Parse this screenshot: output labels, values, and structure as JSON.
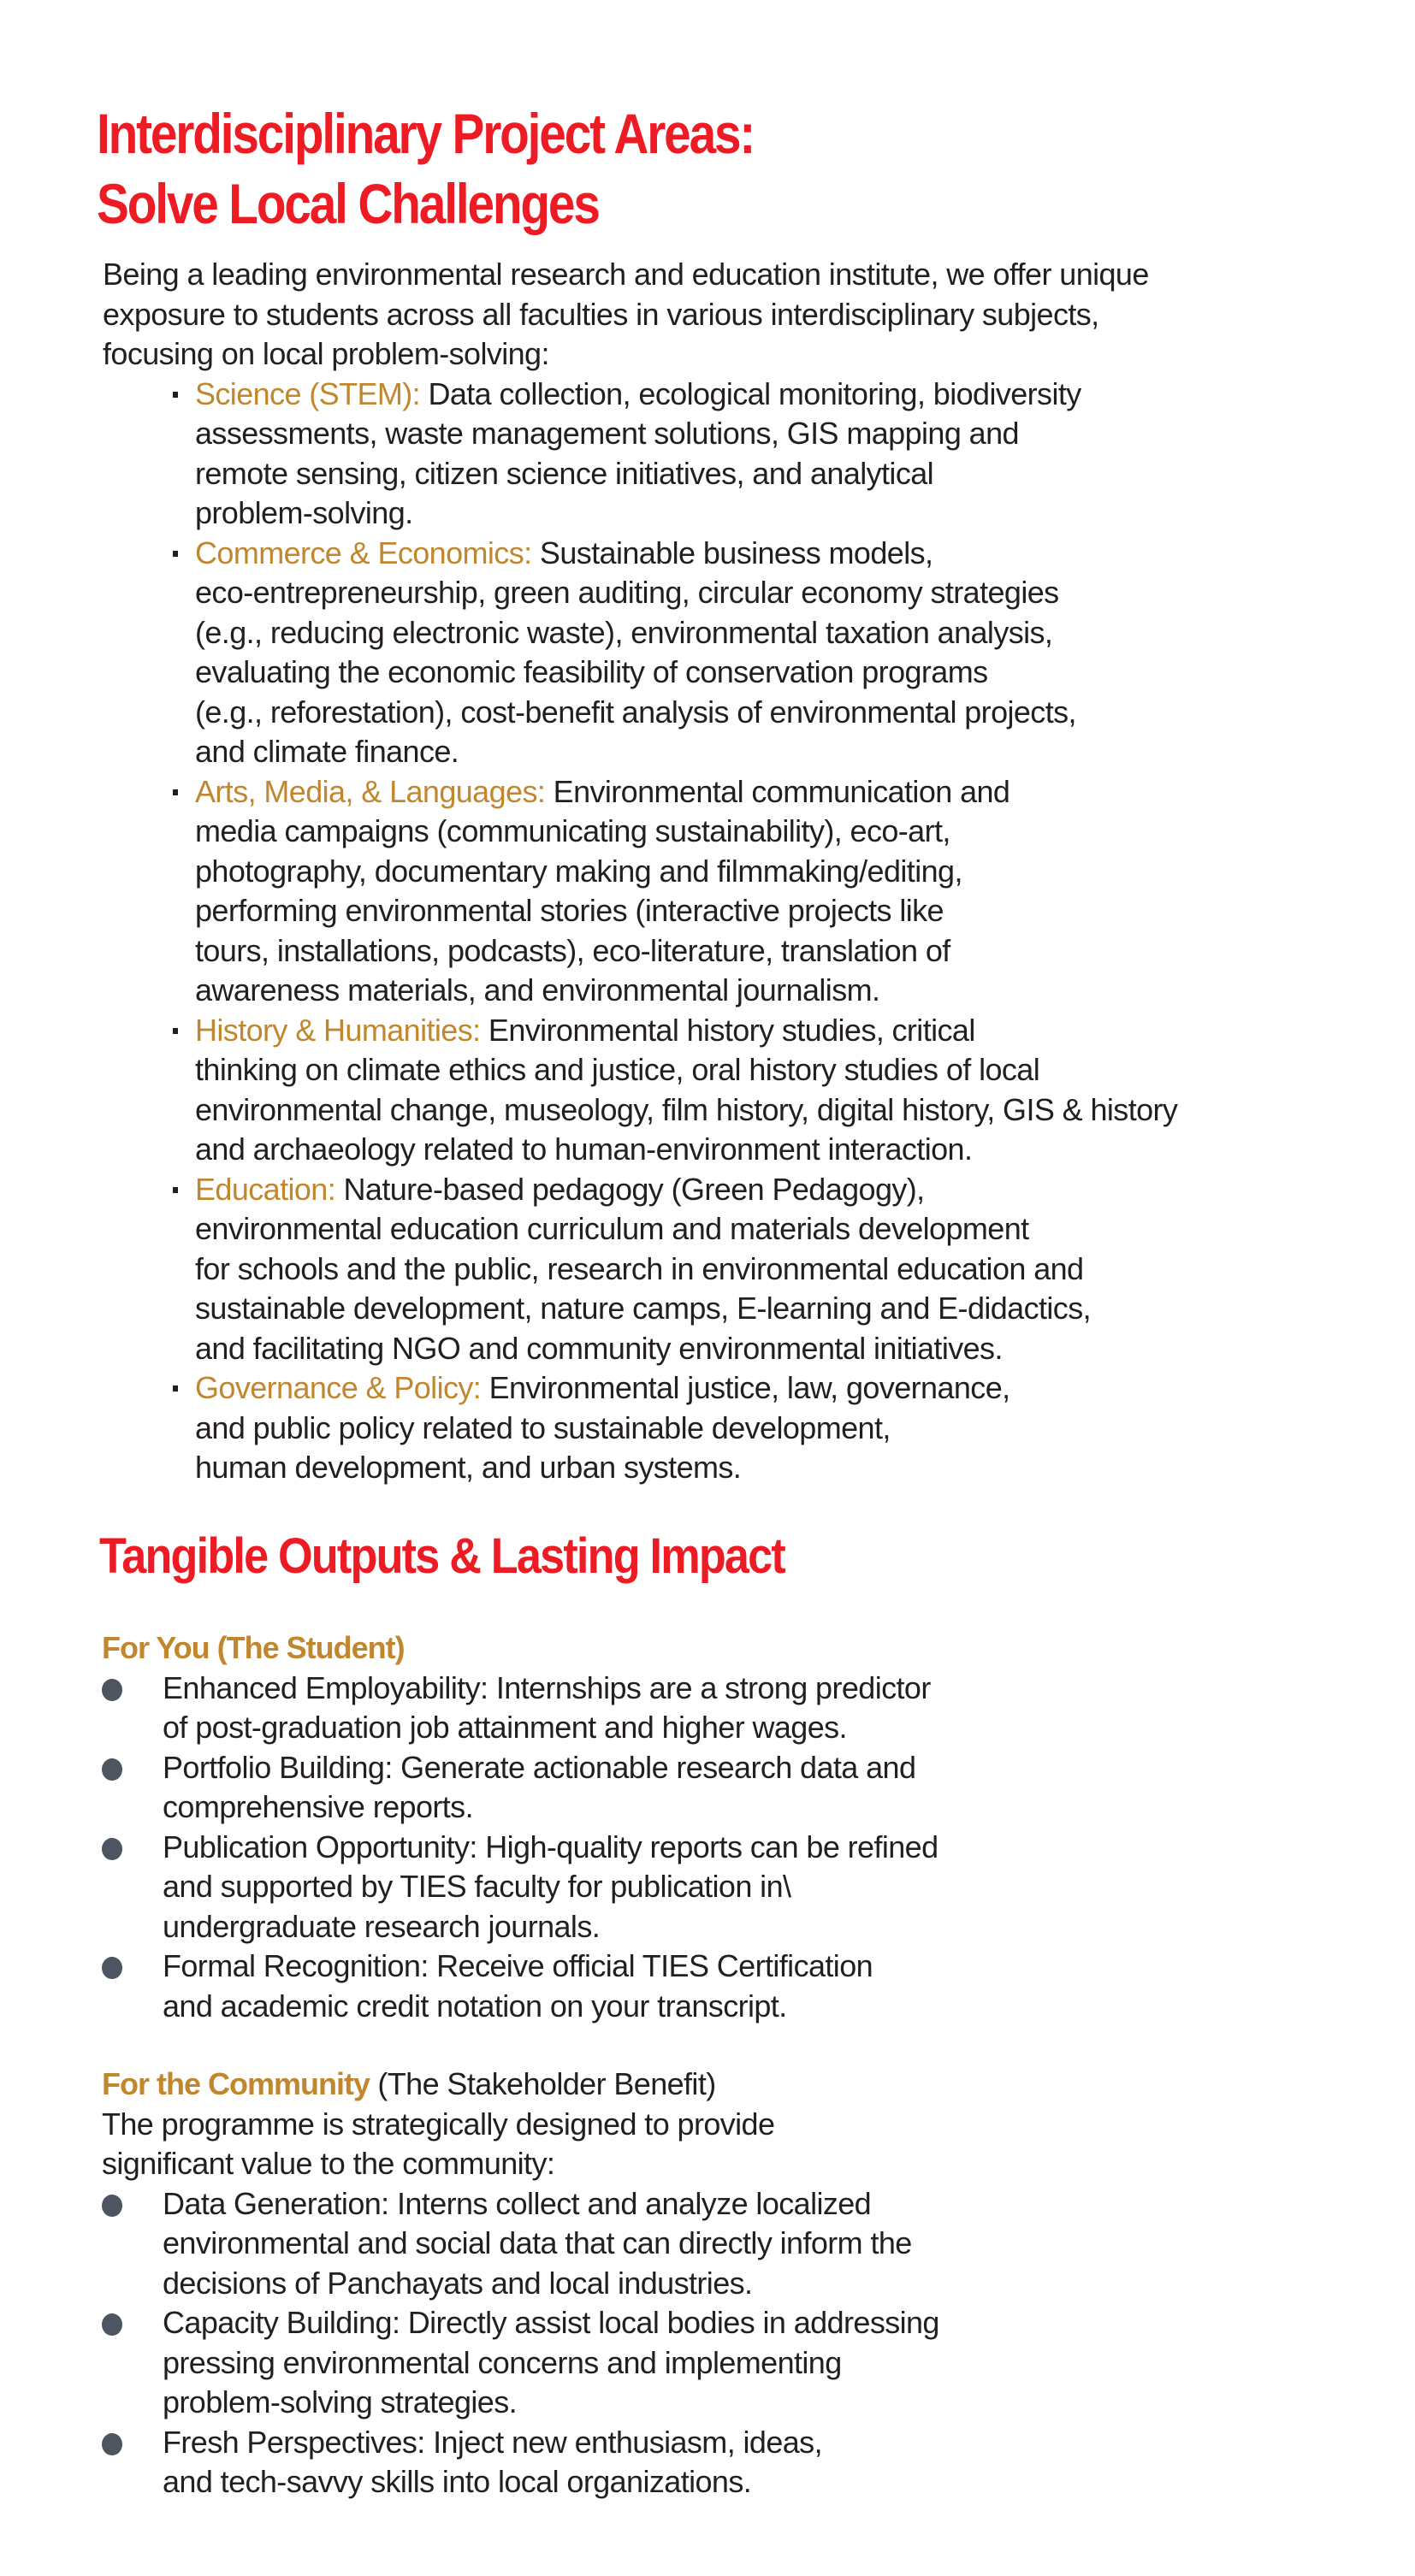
{
  "section1": {
    "title_lines": [
      "Interdisciplinary Project Areas:",
      "Solve Local Challenges"
    ],
    "intro_lines": [
      "Being a leading environmental research and education institute, we offer unique",
      "exposure to students across all faculties in various interdisciplinary subjects,",
      "focusing on local problem-solving:"
    ],
    "areas": [
      {
        "label": "Science (STEM):",
        "lines": [
          " Data collection, ecological monitoring, biodiversity",
          "assessments, waste management solutions, GIS mapping and",
          "remote sensing, citizen science initiatives, and analytical",
          "problem-solving."
        ]
      },
      {
        "label": "Commerce & Economics:",
        "lines": [
          " Sustainable business models,",
          "eco-entrepreneurship, green auditing, circular economy strategies",
          "(e.g., reducing electronic waste), environmental taxation analysis,",
          "evaluating the economic feasibility of conservation programs",
          "(e.g., reforestation), cost-benefit analysis of environmental projects,",
          "and climate finance."
        ]
      },
      {
        "label": "Arts, Media, & Languages:",
        "lines": [
          " Environmental communication and",
          "media campaigns (communicating sustainability), eco-art,",
          "photography, documentary making and filmmaking/editing,",
          "performing environmental stories (interactive projects like",
          "tours, installations, podcasts), eco-literature, translation of",
          "awareness materials, and environmental journalism."
        ]
      },
      {
        "label": "History & Humanities:",
        "lines": [
          " Environmental history studies, critical",
          "thinking on climate ethics and justice, oral history studies of local",
          "environmental change, museology, film history, digital history, GIS & history",
          "and archaeology related to human-environment interaction."
        ]
      },
      {
        "label": "Education:",
        "lines": [
          " Nature-based pedagogy (Green Pedagogy),",
          "environmental education curriculum and materials development",
          "for schools and the public, research in environmental education and",
          "sustainable development, nature camps, E-learning and E-didactics,",
          "and facilitating NGO and community environmental initiatives."
        ]
      },
      {
        "label": "Governance & Policy:",
        "lines": [
          " Environmental justice, law, governance,",
          "and public policy related to sustainable development,",
          "human development, and urban systems."
        ]
      }
    ]
  },
  "section2": {
    "title": "Tangible Outputs & Lasting Impact",
    "student": {
      "heading": "For You (The Student)",
      "items": [
        {
          "lines": [
            "Enhanced Employability: Internships are a strong predictor",
            "of post-graduation job attainment and higher wages."
          ]
        },
        {
          "lines": [
            "Portfolio Building: Generate actionable research data and",
            "comprehensive reports."
          ]
        },
        {
          "lines": [
            "Publication Opportunity: High-quality reports can be refined",
            "and supported by TIES faculty for publication in\\",
            "undergraduate research journals."
          ]
        },
        {
          "lines": [
            "Formal Recognition: Receive official TIES Certification",
            "and academic credit notation on your transcript."
          ]
        }
      ]
    },
    "community": {
      "heading": "For the Community",
      "heading_suffix": " (The Stakeholder Benefit)",
      "intro_lines": [
        "The programme is strategically designed to provide",
        "significant value to the community:"
      ],
      "items": [
        {
          "lines": [
            "Data Generation: Interns collect and analyze localized",
            "environmental and social data that can directly inform the",
            "decisions of Panchayats and local industries."
          ]
        },
        {
          "lines": [
            "Capacity Building: Directly assist local bodies in addressing",
            "pressing environmental concerns and implementing",
            "problem-solving strategies."
          ]
        },
        {
          "lines": [
            "Fresh Perspectives: Inject new enthusiasm, ideas,",
            "and tech-savvy skills into local organizations."
          ]
        }
      ]
    }
  },
  "colors": {
    "heading_red": "#ed1c24",
    "accent_gold": "#c0872f",
    "text": "#231f20",
    "bullet": "#4d5560"
  }
}
